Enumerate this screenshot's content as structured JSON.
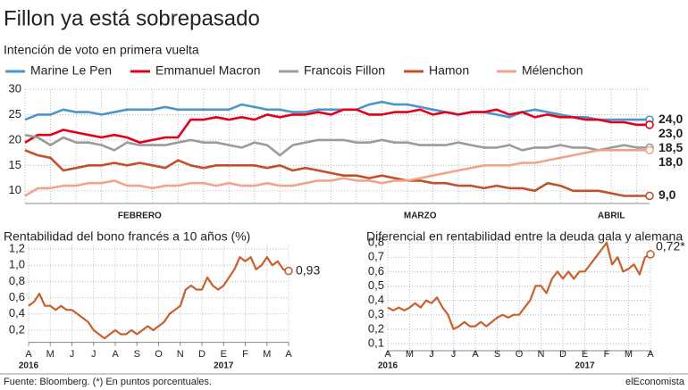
{
  "chart_data": [
    {
      "type": "line",
      "title": "Fillon ya está sobrepasado",
      "subtitle": "Intención de voto en primera vuelta",
      "categories": [
        null,
        null,
        null,
        null,
        null,
        null,
        null,
        null,
        null,
        "FEBRERO",
        null,
        null,
        null,
        null,
        null,
        null,
        null,
        null,
        null,
        null,
        null,
        null,
        null,
        null,
        null,
        null,
        null,
        null,
        null,
        null,
        null,
        "MARZO",
        null,
        null,
        null,
        null,
        null,
        null,
        null,
        null,
        null,
        null,
        null,
        null,
        null,
        null,
        "ABRIL",
        null,
        null,
        null
      ],
      "series": [
        {
          "name": "Marine Le Pen",
          "color": "#4b94cc",
          "values": [
            24,
            25,
            25,
            26,
            25.5,
            25.5,
            25,
            25.5,
            26,
            26,
            26,
            26.5,
            26,
            26,
            26,
            26,
            26,
            27,
            26.5,
            26,
            26,
            25.5,
            25.5,
            26,
            26,
            26,
            26,
            27,
            27.5,
            27,
            27,
            26.5,
            26,
            25.5,
            25,
            25.5,
            25.5,
            25,
            24.5,
            25.5,
            26,
            25.5,
            25,
            24.5,
            24.5,
            24,
            24,
            24,
            24,
            24
          ],
          "value_labels": [
            null,
            null,
            null,
            null,
            null,
            null,
            null,
            null,
            null,
            null,
            null,
            null,
            null,
            null,
            null,
            null,
            null,
            null,
            null,
            null,
            null,
            null,
            null,
            null,
            null,
            null,
            null,
            null,
            null,
            null,
            null,
            null,
            null,
            null,
            null,
            null,
            null,
            null,
            null,
            null,
            null,
            null,
            null,
            null,
            null,
            null,
            null,
            null,
            null,
            "24,0"
          ]
        },
        {
          "name": "Emmanuel Macron",
          "color": "#e2001a",
          "values": [
            19.5,
            21,
            21,
            22,
            21.5,
            21,
            20.5,
            21,
            20.5,
            19.5,
            20,
            20.5,
            20.5,
            24,
            24,
            24.5,
            24,
            24.5,
            24,
            25,
            24.5,
            25,
            25,
            25.5,
            25,
            26,
            26,
            25,
            25,
            25.5,
            25.5,
            26,
            25,
            25.5,
            25,
            25.5,
            25.5,
            26,
            25,
            25.5,
            24.5,
            25,
            24.5,
            24.5,
            24,
            24,
            23.5,
            23.5,
            23,
            23
          ],
          "value_labels": [
            null,
            null,
            null,
            null,
            null,
            null,
            null,
            null,
            null,
            null,
            null,
            null,
            null,
            null,
            null,
            null,
            null,
            null,
            null,
            null,
            null,
            null,
            null,
            null,
            null,
            null,
            null,
            null,
            null,
            null,
            null,
            null,
            null,
            null,
            null,
            null,
            null,
            null,
            null,
            null,
            null,
            null,
            null,
            null,
            null,
            null,
            null,
            null,
            null,
            "23,0"
          ]
        },
        {
          "name": "Francois Fillon",
          "color": "#9b9b9b",
          "values": [
            21,
            20.5,
            19,
            20.5,
            19.5,
            19.5,
            19,
            18,
            19.5,
            19,
            19,
            19,
            19.5,
            20,
            19.5,
            19.5,
            19,
            18.5,
            19.5,
            19,
            17,
            19,
            19.5,
            20,
            20,
            20,
            19.5,
            19.5,
            20,
            19.5,
            19.5,
            19,
            19,
            19,
            19.5,
            19,
            18.5,
            18.5,
            19,
            18,
            18.5,
            18.5,
            19,
            18.5,
            18.5,
            18,
            18.5,
            19,
            18.5,
            18.5
          ],
          "value_labels": [
            null,
            null,
            null,
            null,
            null,
            null,
            null,
            null,
            null,
            null,
            null,
            null,
            null,
            null,
            null,
            null,
            null,
            null,
            null,
            null,
            null,
            null,
            null,
            null,
            null,
            null,
            null,
            null,
            null,
            null,
            null,
            null,
            null,
            null,
            null,
            null,
            null,
            null,
            null,
            null,
            null,
            null,
            null,
            null,
            null,
            null,
            null,
            null,
            null,
            "18,5"
          ]
        },
        {
          "name": "Hamon",
          "color": "#c0522b",
          "values": [
            18,
            17,
            16.5,
            14,
            14.5,
            15,
            15,
            15.5,
            15,
            15.5,
            15,
            14.5,
            16,
            15,
            14.5,
            15,
            15,
            15,
            15,
            14.5,
            15,
            14,
            14.5,
            14,
            13.5,
            13,
            13,
            12.5,
            13,
            12.5,
            12,
            12,
            11.5,
            11.5,
            11,
            11,
            10.5,
            11,
            10.5,
            10.5,
            10,
            11.5,
            11,
            10,
            10,
            10,
            9.5,
            9,
            9,
            9
          ],
          "value_labels": [
            null,
            null,
            null,
            null,
            null,
            null,
            null,
            null,
            null,
            null,
            null,
            null,
            null,
            null,
            null,
            null,
            null,
            null,
            null,
            null,
            null,
            null,
            null,
            null,
            null,
            null,
            null,
            null,
            null,
            null,
            null,
            null,
            null,
            null,
            null,
            null,
            null,
            null,
            null,
            null,
            null,
            null,
            null,
            null,
            null,
            null,
            null,
            null,
            null,
            "9,0"
          ]
        },
        {
          "name": "Mélenchon",
          "color": "#f0a58a",
          "values": [
            9,
            10.5,
            10.5,
            11,
            11,
            11.5,
            11.5,
            12,
            11,
            11,
            10.5,
            11,
            11,
            11.5,
            11.5,
            11,
            11.5,
            11,
            11,
            11.5,
            11,
            11,
            11.5,
            12,
            12,
            12.5,
            12,
            12,
            11.5,
            12,
            12,
            12.5,
            13,
            13.5,
            14,
            14.5,
            15,
            15,
            15,
            15.5,
            15.5,
            16,
            16.5,
            17,
            17.5,
            18,
            18,
            18,
            18,
            18
          ],
          "value_labels": [
            null,
            null,
            null,
            null,
            null,
            null,
            null,
            null,
            null,
            null,
            null,
            null,
            null,
            null,
            null,
            null,
            null,
            null,
            null,
            null,
            null,
            null,
            null,
            null,
            null,
            null,
            null,
            null,
            null,
            null,
            null,
            null,
            null,
            null,
            null,
            null,
            null,
            null,
            null,
            null,
            null,
            null,
            null,
            null,
            null,
            null,
            null,
            null,
            null,
            "18,0"
          ]
        }
      ],
      "ylim": [
        7.5,
        30
      ],
      "yticks": [
        10,
        15,
        20,
        25,
        30
      ],
      "grid": true
    },
    {
      "type": "line",
      "title": "Rentabilidad del bono francés a 10 años (%)",
      "categories": [
        "A",
        null,
        null,
        null,
        "M",
        null,
        null,
        null,
        "J",
        null,
        null,
        null,
        "J",
        null,
        null,
        null,
        "A",
        null,
        null,
        null,
        "S",
        null,
        null,
        null,
        "O",
        null,
        null,
        null,
        "N",
        null,
        null,
        null,
        "D",
        null,
        null,
        null,
        "E",
        null,
        null,
        null,
        "F",
        null,
        null,
        null,
        "M",
        null,
        null,
        null,
        "A"
      ],
      "year_labels": [
        {
          "label": "2016",
          "category": 0
        },
        {
          "label": "2017",
          "category": 36
        }
      ],
      "color": "#c8602e",
      "values": [
        0.5,
        0.55,
        0.65,
        0.5,
        0.5,
        0.45,
        0.5,
        0.45,
        0.45,
        0.4,
        0.35,
        0.3,
        0.2,
        0.15,
        0.1,
        0.15,
        0.2,
        0.15,
        0.15,
        0.2,
        0.15,
        0.2,
        0.25,
        0.2,
        0.25,
        0.3,
        0.4,
        0.45,
        0.5,
        0.7,
        0.75,
        0.7,
        0.7,
        0.85,
        0.75,
        0.7,
        0.75,
        0.85,
        0.95,
        1.1,
        1.05,
        1.1,
        0.95,
        1.0,
        1.1,
        1.0,
        1.05,
        0.95,
        0.93
      ],
      "value_labels": [
        null,
        null,
        null,
        null,
        null,
        null,
        null,
        null,
        null,
        null,
        null,
        null,
        null,
        null,
        null,
        null,
        null,
        null,
        null,
        null,
        null,
        null,
        null,
        null,
        null,
        null,
        null,
        null,
        null,
        null,
        null,
        null,
        null,
        null,
        null,
        null,
        null,
        null,
        null,
        null,
        null,
        null,
        null,
        null,
        null,
        null,
        null,
        null,
        "0,93"
      ],
      "ylim": [
        0.05,
        1.25
      ],
      "yticks": [
        {
          "value": 0.2,
          "label": "0,2"
        },
        {
          "value": 0.4,
          "label": "0,4"
        },
        {
          "value": 0.6,
          "label": "0,6"
        },
        {
          "value": 0.8,
          "label": "0,8"
        },
        {
          "value": 1.0,
          "label": "1,0"
        },
        {
          "value": 1.2,
          "label": "1,2"
        }
      ],
      "grid": true
    },
    {
      "type": "line",
      "title": "Diferencial en rentabilidad entre la deuda gala y alemana",
      "categories": [
        "A",
        null,
        null,
        null,
        "M",
        null,
        null,
        null,
        "J",
        null,
        null,
        null,
        "J",
        null,
        null,
        null,
        "A",
        null,
        null,
        null,
        "S",
        null,
        null,
        null,
        "O",
        null,
        null,
        null,
        "N",
        null,
        null,
        null,
        "D",
        null,
        null,
        null,
        "E",
        null,
        null,
        null,
        "F",
        null,
        null,
        null,
        "M",
        null,
        null,
        null,
        "A"
      ],
      "year_labels": [
        {
          "label": "2016",
          "category": 0
        },
        {
          "label": "2017",
          "category": 36
        }
      ],
      "color": "#c8602e",
      "values": [
        0.35,
        0.33,
        0.35,
        0.33,
        0.35,
        0.38,
        0.35,
        0.4,
        0.38,
        0.42,
        0.35,
        0.3,
        0.2,
        0.22,
        0.25,
        0.22,
        0.22,
        0.25,
        0.22,
        0.25,
        0.28,
        0.3,
        0.28,
        0.3,
        0.3,
        0.35,
        0.4,
        0.5,
        0.5,
        0.45,
        0.55,
        0.6,
        0.55,
        0.6,
        0.55,
        0.6,
        0.6,
        0.65,
        0.7,
        0.75,
        0.8,
        0.65,
        0.7,
        0.6,
        0.62,
        0.65,
        0.58,
        0.7,
        0.72
      ],
      "value_labels": [
        null,
        null,
        null,
        null,
        null,
        null,
        null,
        null,
        null,
        null,
        null,
        null,
        null,
        null,
        null,
        null,
        null,
        null,
        null,
        null,
        null,
        null,
        null,
        null,
        null,
        null,
        null,
        null,
        null,
        null,
        null,
        null,
        null,
        null,
        null,
        null,
        null,
        null,
        null,
        null,
        null,
        null,
        null,
        null,
        null,
        null,
        null,
        null,
        "0,72*"
      ],
      "ylim": [
        0.05,
        0.85
      ],
      "yticks": [
        {
          "value": 0.1,
          "label": "0,1"
        },
        {
          "value": 0.2,
          "label": "0,2"
        },
        {
          "value": 0.3,
          "label": "0,3"
        },
        {
          "value": 0.4,
          "label": "0,4"
        },
        {
          "value": 0.5,
          "label": "0,5"
        },
        {
          "value": 0.6,
          "label": "0,6"
        },
        {
          "value": 0.7,
          "label": "0,7"
        },
        {
          "value": 0.8,
          "label": "0,8"
        }
      ],
      "grid": true
    }
  ],
  "footer": {
    "source": "Fuente: Bloomberg. (*) En puntos porcentuales.",
    "brand": "elEconomista"
  }
}
